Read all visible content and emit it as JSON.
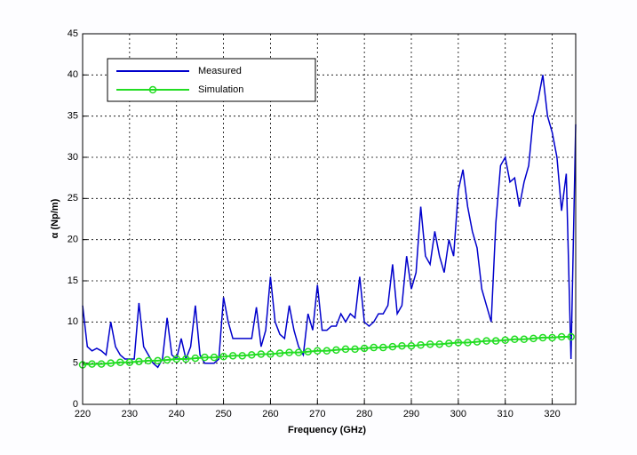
{
  "chart_data": {
    "type": "line",
    "xlabel": "Frequency (GHz)",
    "ylabel": "α (Np/m)",
    "xlim": [
      220,
      325
    ],
    "ylim": [
      0,
      45
    ],
    "xticks": [
      220,
      230,
      240,
      250,
      260,
      270,
      280,
      290,
      300,
      310,
      320
    ],
    "yticks": [
      0,
      5,
      10,
      15,
      20,
      25,
      30,
      35,
      40,
      45
    ],
    "grid": true,
    "legend": "upper left",
    "series": [
      {
        "name": "Measured",
        "color": "#0000cc",
        "marker": false,
        "x": [
          220,
          221,
          222,
          223,
          224,
          225,
          226,
          227,
          228,
          229,
          230,
          231,
          232,
          233,
          234,
          235,
          236,
          237,
          238,
          239,
          240,
          241,
          242,
          243,
          244,
          245,
          246,
          247,
          248,
          249,
          250,
          251,
          252,
          253,
          254,
          255,
          256,
          257,
          258,
          259,
          260,
          261,
          262,
          263,
          264,
          265,
          266,
          267,
          268,
          269,
          270,
          271,
          272,
          273,
          274,
          275,
          276,
          277,
          278,
          279,
          280,
          281,
          282,
          283,
          284,
          285,
          286,
          287,
          288,
          289,
          290,
          291,
          292,
          293,
          294,
          295,
          296,
          297,
          298,
          299,
          300,
          301,
          302,
          303,
          304,
          305,
          306,
          307,
          308,
          309,
          310,
          311,
          312,
          313,
          314,
          315,
          316,
          317,
          318,
          319,
          320,
          321,
          322,
          323,
          324,
          325
        ],
        "values": [
          12,
          7,
          6.5,
          6.8,
          6.5,
          6,
          10,
          7,
          6,
          5.5,
          5.5,
          5.5,
          12.3,
          7,
          6,
          5,
          4.5,
          5.5,
          10.5,
          6,
          5.5,
          8,
          5.5,
          7,
          12,
          6,
          5,
          5,
          5,
          5.5,
          13,
          10,
          8,
          8,
          8,
          8,
          8,
          11.8,
          7,
          9,
          15.5,
          10,
          8.5,
          8,
          12,
          9,
          7,
          6,
          11,
          9,
          14.5,
          9,
          9,
          9.5,
          9.5,
          11,
          10,
          11,
          10.5,
          15.5,
          10,
          9.5,
          10,
          11,
          11,
          12,
          17,
          11,
          12,
          18,
          14,
          16,
          24,
          18,
          17,
          21,
          18,
          16,
          20,
          18,
          26,
          28.5,
          24,
          21,
          19,
          14,
          12,
          10,
          22,
          29,
          30,
          27,
          27.5,
          24,
          27,
          29,
          35,
          37,
          40,
          35,
          33,
          30,
          23.5,
          28,
          5.5,
          34
        ]
      },
      {
        "name": "Simulation",
        "color": "#22dd22",
        "marker": true,
        "x": [
          220,
          222,
          224,
          226,
          228,
          230,
          232,
          234,
          236,
          238,
          240,
          242,
          244,
          246,
          248,
          250,
          252,
          254,
          256,
          258,
          260,
          262,
          264,
          266,
          268,
          270,
          272,
          274,
          276,
          278,
          280,
          282,
          284,
          286,
          288,
          290,
          292,
          294,
          296,
          298,
          300,
          302,
          304,
          306,
          308,
          310,
          312,
          314,
          316,
          318,
          320,
          322,
          324
        ],
        "values": [
          4.8,
          4.9,
          4.9,
          5.0,
          5.1,
          5.1,
          5.2,
          5.3,
          5.3,
          5.4,
          5.5,
          5.5,
          5.6,
          5.7,
          5.7,
          5.8,
          5.9,
          5.9,
          6.0,
          6.1,
          6.1,
          6.2,
          6.3,
          6.3,
          6.4,
          6.5,
          6.5,
          6.6,
          6.7,
          6.7,
          6.8,
          6.9,
          6.9,
          7.0,
          7.1,
          7.1,
          7.2,
          7.3,
          7.3,
          7.4,
          7.5,
          7.5,
          7.6,
          7.7,
          7.7,
          7.8,
          7.9,
          7.9,
          8.0,
          8.1,
          8.1,
          8.2,
          8.2
        ]
      }
    ]
  }
}
